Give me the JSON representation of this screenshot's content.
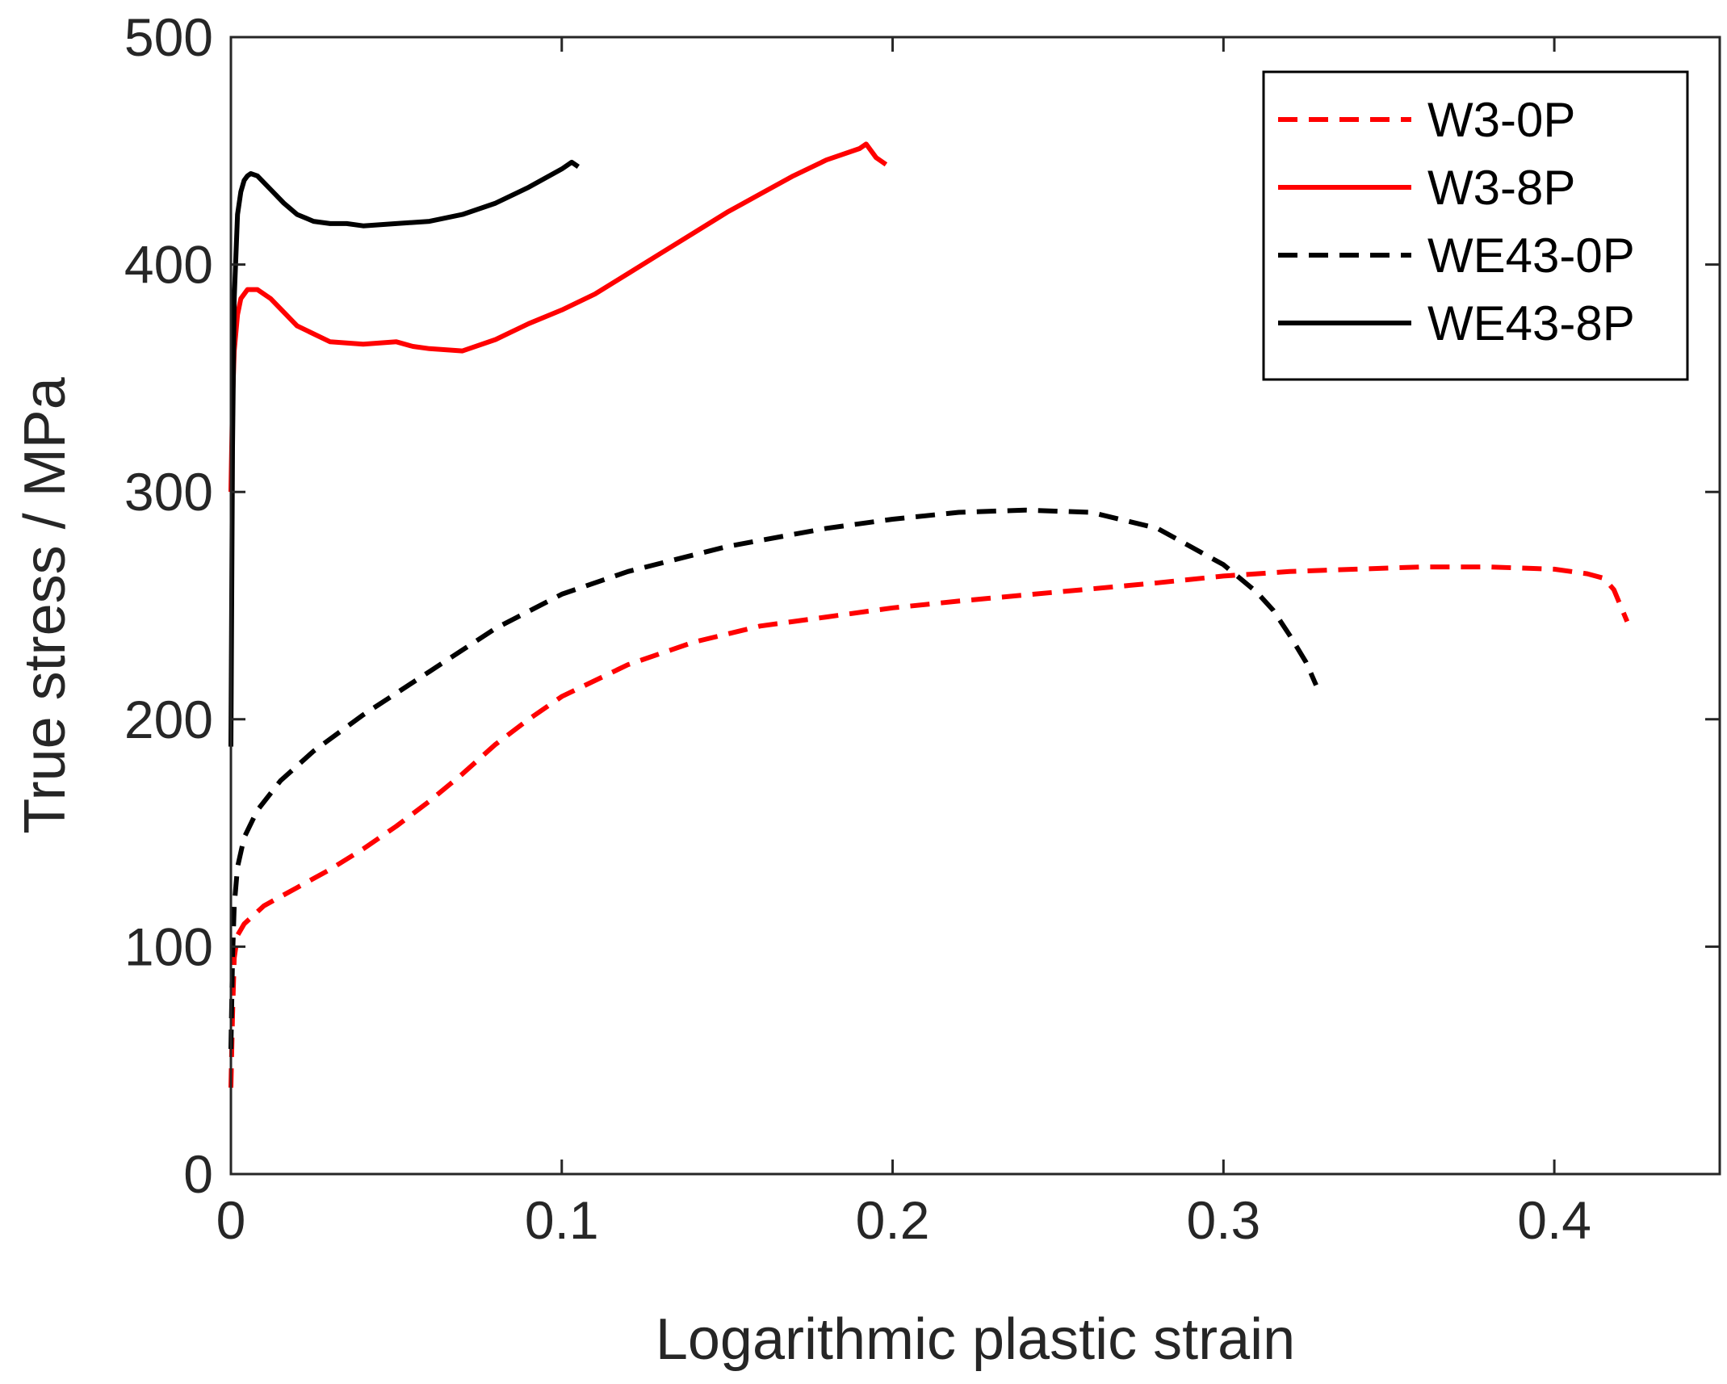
{
  "chart_data": {
    "type": "line",
    "title": "",
    "xlabel": "Logarithmic plastic strain",
    "ylabel": "True stress / MPa",
    "xlim": [
      0,
      0.45
    ],
    "ylim": [
      0,
      500
    ],
    "xticks": [
      0,
      0.1,
      0.2,
      0.3,
      0.4
    ],
    "xtick_labels": [
      "0",
      "0.1",
      "0.2",
      "0.3",
      "0.4"
    ],
    "yticks": [
      0,
      100,
      200,
      300,
      400,
      500
    ],
    "ytick_labels": [
      "0",
      "100",
      "200",
      "300",
      "400",
      "500"
    ],
    "grid": false,
    "legend_position": "top-right",
    "series": [
      {
        "name": "W3-0P",
        "color": "#ff0000",
        "style": "dashed",
        "x": [
          0,
          0.0005,
          0.001,
          0.002,
          0.004,
          0.01,
          0.02,
          0.03,
          0.04,
          0.05,
          0.06,
          0.07,
          0.08,
          0.09,
          0.1,
          0.12,
          0.14,
          0.16,
          0.18,
          0.2,
          0.22,
          0.25,
          0.28,
          0.3,
          0.32,
          0.34,
          0.36,
          0.38,
          0.4,
          0.41,
          0.415,
          0.418,
          0.42,
          0.422
        ],
        "y": [
          38,
          70,
          95,
          105,
          110,
          118,
          126,
          134,
          143,
          153,
          164,
          176,
          189,
          200,
          210,
          224,
          234,
          241,
          245,
          249,
          252,
          256,
          260,
          263,
          265,
          266,
          267,
          267,
          266,
          264,
          262,
          257,
          250,
          243
        ]
      },
      {
        "name": "W3-8P",
        "color": "#ff0000",
        "style": "solid",
        "x": [
          0,
          0.0005,
          0.001,
          0.002,
          0.003,
          0.005,
          0.008,
          0.012,
          0.02,
          0.03,
          0.04,
          0.05,
          0.055,
          0.06,
          0.07,
          0.08,
          0.09,
          0.1,
          0.11,
          0.12,
          0.13,
          0.14,
          0.15,
          0.16,
          0.17,
          0.18,
          0.19,
          0.192,
          0.195,
          0.198
        ],
        "y": [
          300,
          340,
          362,
          378,
          385,
          389,
          389,
          385,
          373,
          366,
          365,
          366,
          364,
          363,
          362,
          367,
          374,
          380,
          387,
          396,
          405,
          414,
          423,
          431,
          439,
          446,
          451,
          453,
          447,
          444
        ]
      },
      {
        "name": "WE43-0P",
        "color": "#000000",
        "style": "dashed",
        "x": [
          0,
          0.0005,
          0.001,
          0.002,
          0.004,
          0.008,
          0.015,
          0.025,
          0.04,
          0.06,
          0.08,
          0.1,
          0.12,
          0.15,
          0.18,
          0.2,
          0.22,
          0.24,
          0.26,
          0.28,
          0.3,
          0.31,
          0.315,
          0.32,
          0.325,
          0.328
        ],
        "y": [
          55,
          95,
          118,
          135,
          148,
          160,
          173,
          186,
          202,
          221,
          240,
          255,
          265,
          276,
          284,
          288,
          291,
          292,
          291,
          284,
          268,
          256,
          248,
          237,
          225,
          215
        ]
      },
      {
        "name": "WE43-8P",
        "color": "#000000",
        "style": "solid",
        "x": [
          0,
          0.0005,
          0.001,
          0.002,
          0.003,
          0.004,
          0.005,
          0.006,
          0.008,
          0.012,
          0.016,
          0.02,
          0.025,
          0.03,
          0.035,
          0.04,
          0.05,
          0.06,
          0.07,
          0.08,
          0.09,
          0.1,
          0.103,
          0.105
        ],
        "y": [
          188,
          320,
          385,
          422,
          432,
          437,
          439,
          440,
          439,
          433,
          427,
          422,
          419,
          418,
          418,
          417,
          418,
          419,
          422,
          427,
          434,
          442,
          445,
          443
        ]
      }
    ]
  }
}
